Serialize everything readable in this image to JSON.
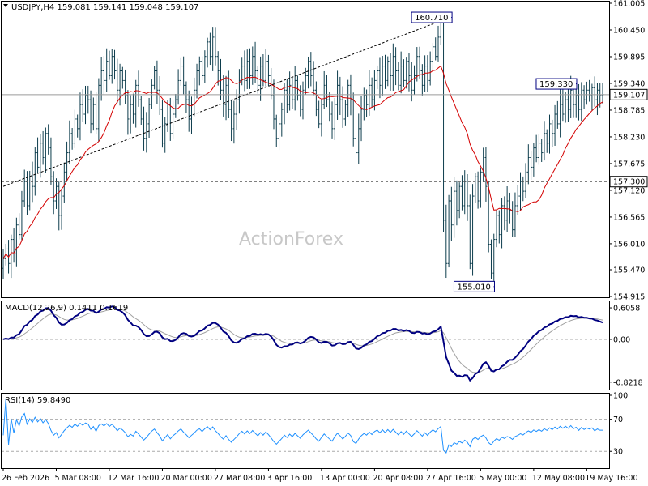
{
  "chart_data": {
    "type": "candlestick",
    "symbol_line": "USDJPY,H4  159.081 159.141 159.048 159.107",
    "watermark": "ActionForex",
    "price_panel": {
      "ylim": [
        154.915,
        161.005
      ],
      "y_ticks": [
        "161.005",
        "160.450",
        "159.895",
        "159.340",
        "158.785",
        "158.230",
        "157.675",
        "157.120",
        "156.565",
        "156.010",
        "155.470",
        "154.915"
      ],
      "y_tick_values": [
        161.005,
        160.45,
        159.895,
        159.34,
        158.785,
        158.23,
        157.675,
        157.12,
        156.565,
        156.01,
        155.47,
        154.915
      ],
      "current_price": 159.107,
      "current_price_label": "159.107",
      "support_level": 157.3,
      "support_label": "157.300",
      "callouts": [
        {
          "label": "160.710",
          "value": 160.71,
          "bar": 168
        },
        {
          "label": "159.330",
          "value": 159.33,
          "bar": 215
        },
        {
          "label": "155.010",
          "value": 155.01,
          "bar": 184
        }
      ],
      "trendline": {
        "from": {
          "bar": 0,
          "value": 157.2
        },
        "to": {
          "bar": 168,
          "value": 160.7
        }
      },
      "moving_average_color": "#d40000",
      "bar_color": "#0c3c4c"
    },
    "macd_panel": {
      "label": "MACD(12,26,9) 0.1411 0.1619",
      "ylim": [
        -0.95,
        0.7
      ],
      "y_ticks": [
        "0.6058",
        "0.00",
        "-0.8218"
      ],
      "y_tick_values": [
        0.6058,
        0.0,
        -0.8218
      ],
      "macd_color": "#000080",
      "signal_color": "#a0a0a0"
    },
    "rsi_panel": {
      "label": "RSI(14) 59.8490",
      "ylim": [
        10,
        100
      ],
      "y_ticks": [
        "100",
        "70",
        "30"
      ],
      "y_tick_values": [
        100,
        70,
        30
      ],
      "rsi_color": "#1e90ff"
    },
    "x_axis": {
      "labels": [
        "26 Feb 2026",
        "5 Mar 08:00",
        "12 Mar 16:00",
        "20 Mar 00:00",
        "27 Mar 08:00",
        "3 Apr 16:00",
        "13 Apr 00:00",
        "20 Apr 08:00",
        "27 Apr 16:00",
        "5 May 00:00",
        "12 May 08:00",
        "19 May 16:00"
      ],
      "label_bars": [
        0,
        20,
        40,
        60,
        80,
        100,
        120,
        140,
        160,
        180,
        200,
        220
      ]
    },
    "series": {
      "close": [
        155.7,
        155.9,
        155.6,
        156.1,
        155.8,
        156.4,
        156.2,
        156.9,
        157.3,
        156.8,
        157.4,
        157.2,
        157.9,
        157.6,
        158.1,
        157.8,
        158.3,
        158.0,
        157.4,
        156.9,
        157.2,
        156.6,
        157.0,
        157.5,
        157.9,
        158.3,
        158.1,
        158.6,
        158.4,
        158.9,
        158.7,
        159.1,
        159.0,
        158.5,
        158.9,
        158.4,
        159.3,
        159.6,
        159.4,
        159.8,
        159.5,
        159.9,
        159.6,
        159.2,
        159.6,
        159.4,
        159.1,
        158.6,
        158.9,
        158.7,
        159.3,
        159.0,
        158.6,
        158.2,
        158.5,
        158.9,
        159.3,
        159.6,
        159.2,
        158.8,
        158.1,
        158.5,
        158.9,
        158.3,
        158.7,
        159.0,
        159.4,
        159.7,
        159.3,
        159.0,
        158.6,
        158.9,
        159.2,
        159.6,
        159.8,
        159.5,
        159.9,
        160.2,
        159.9,
        160.3,
        159.9,
        159.6,
        159.2,
        158.9,
        159.3,
        158.8,
        158.4,
        158.7,
        159.0,
        159.4,
        159.7,
        159.4,
        159.8,
        159.5,
        159.9,
        159.6,
        159.3,
        159.7,
        159.4,
        159.8,
        159.5,
        159.1,
        158.6,
        158.2,
        158.5,
        158.8,
        159.2,
        158.9,
        159.3,
        159.0,
        159.4,
        159.1,
        158.8,
        159.2,
        159.5,
        159.8,
        159.5,
        159.2,
        158.8,
        158.5,
        158.9,
        159.3,
        159.0,
        158.7,
        158.4,
        158.9,
        159.3,
        159.0,
        158.6,
        158.9,
        159.3,
        159.0,
        158.2,
        157.9,
        158.4,
        158.8,
        159.1,
        158.9,
        159.3,
        159.0,
        159.4,
        159.6,
        159.3,
        159.7,
        159.4,
        159.8,
        159.5,
        159.9,
        159.6,
        159.3,
        159.7,
        159.4,
        159.8,
        159.5,
        159.2,
        159.5,
        159.9,
        159.6,
        159.3,
        159.7,
        159.4,
        159.8,
        160.1,
        159.9,
        160.3,
        160.6,
        156.5,
        155.6,
        156.9,
        156.4,
        157.1,
        156.7,
        157.2,
        156.8,
        157.3,
        156.8,
        155.6,
        157.0,
        157.4,
        156.9,
        157.5,
        157.8,
        157.2,
        156.0,
        155.4,
        156.1,
        156.6,
        156.2,
        156.8,
        156.5,
        156.9,
        156.7,
        156.3,
        156.8,
        157.0,
        157.3,
        157.1,
        157.5,
        157.8,
        157.6,
        158.0,
        157.8,
        158.1,
        157.9,
        158.3,
        158.1,
        158.5,
        158.3,
        158.7,
        158.5,
        158.9,
        158.7,
        159.0,
        158.8,
        159.2,
        158.9,
        159.1,
        158.8,
        159.2,
        159.0,
        159.2,
        159.1,
        159.25,
        159.0,
        159.2,
        159.1,
        159.107
      ]
    }
  }
}
